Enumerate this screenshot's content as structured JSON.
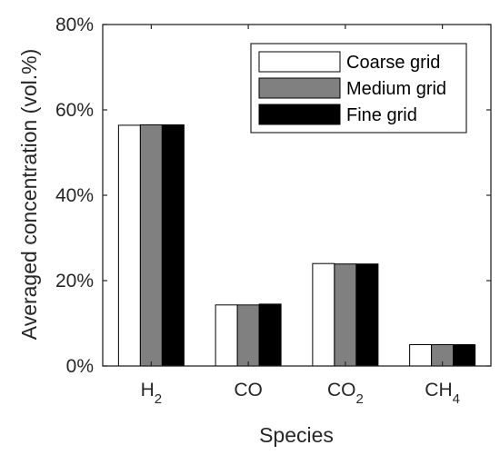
{
  "chart_data": {
    "type": "bar",
    "categories": [
      {
        "base": "H",
        "sub": "2"
      },
      {
        "base": "CO",
        "sub": ""
      },
      {
        "base": "CO",
        "sub": "2"
      },
      {
        "base": "CH",
        "sub": "4"
      }
    ],
    "series": [
      {
        "name": "Coarse grid",
        "color": "#ffffff",
        "values": [
          56.4,
          14.3,
          24.0,
          5.0
        ]
      },
      {
        "name": "Medium grid",
        "color": "#808080",
        "values": [
          56.5,
          14.3,
          23.9,
          5.0
        ]
      },
      {
        "name": "Fine grid",
        "color": "#000000",
        "values": [
          56.5,
          14.5,
          23.9,
          5.0
        ]
      }
    ],
    "xlabel": "Species",
    "ylabel": "Averaged concentration (vol.%)",
    "ylim": [
      0,
      80
    ],
    "yticks": [
      0,
      20,
      40,
      60,
      80
    ],
    "ytick_labels": [
      "0%",
      "20%",
      "40%",
      "60%",
      "80%"
    ],
    "grid": false,
    "legend_position": "top-right"
  }
}
